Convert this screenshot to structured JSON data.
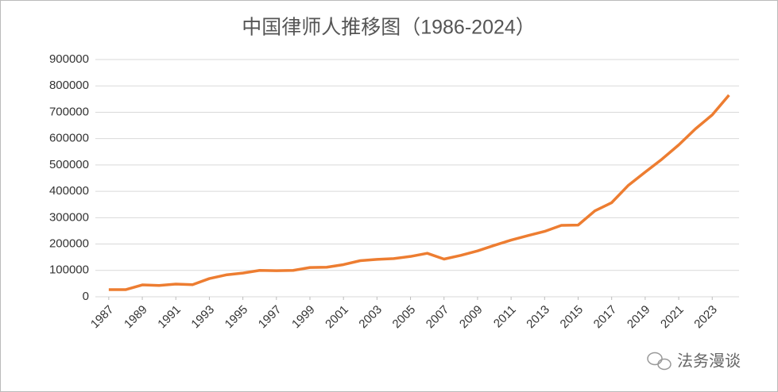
{
  "chart_data": {
    "type": "line",
    "title": "中国律师人推移图（1986-2024）",
    "x": [
      1987,
      1988,
      1989,
      1990,
      1991,
      1992,
      1993,
      1994,
      1995,
      1996,
      1997,
      1998,
      1999,
      2000,
      2001,
      2002,
      2003,
      2004,
      2005,
      2006,
      2007,
      2008,
      2009,
      2010,
      2011,
      2012,
      2013,
      2014,
      2015,
      2016,
      2017,
      2018,
      2019,
      2020,
      2021,
      2022,
      2023,
      2024
    ],
    "series": [
      {
        "color": "#ed7d31",
        "values": [
          27000,
          27000,
          45000,
          43000,
          48000,
          46000,
          69000,
          83000,
          90000,
          100000,
          99000,
          100000,
          111000,
          112000,
          122000,
          137000,
          142000,
          145000,
          153000,
          165000,
          143000,
          157000,
          174000,
          195000,
          215000,
          232000,
          248000,
          271000,
          272000,
          326000,
          357000,
          423000,
          473000,
          522000,
          576000,
          637000,
          690000,
          765000
        ]
      }
    ],
    "xlim": [
      1986.2,
      2024.6
    ],
    "xticks": [
      1987,
      1989,
      1991,
      1993,
      1995,
      1997,
      1999,
      2001,
      2003,
      2005,
      2007,
      2009,
      2011,
      2013,
      2015,
      2017,
      2019,
      2021,
      2023
    ],
    "ylim": [
      0,
      900000
    ],
    "yticks": [
      0,
      100000,
      200000,
      300000,
      400000,
      500000,
      600000,
      700000,
      800000,
      900000
    ],
    "grid": true,
    "watermark": "法务漫谈"
  }
}
